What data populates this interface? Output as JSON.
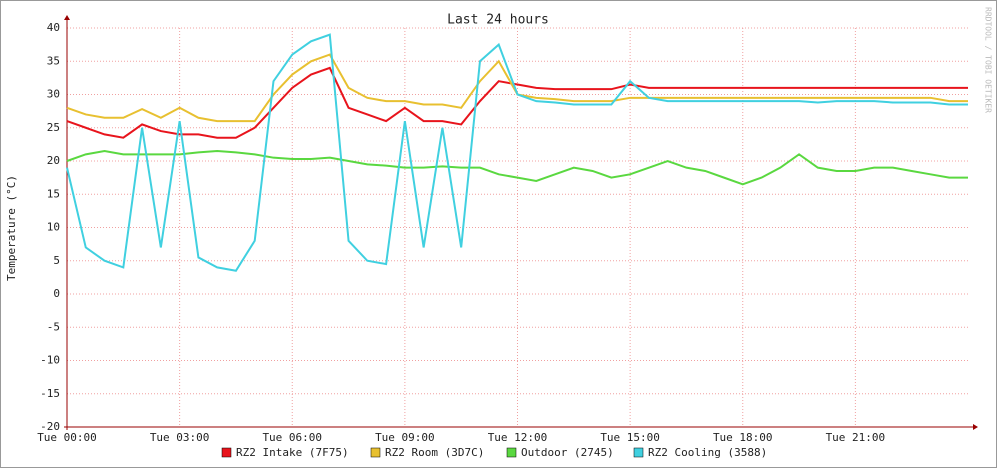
{
  "chart_data": {
    "type": "line",
    "title": "Last 24 hours",
    "y_label": "Temperature (°C)",
    "watermark": "RRDTOOL / TOBI OETIKER",
    "x": [
      0,
      0.5,
      1,
      1.5,
      2,
      2.5,
      3,
      3.5,
      4,
      4.5,
      5,
      5.5,
      6,
      6.5,
      7,
      7.5,
      8,
      8.5,
      9,
      9.5,
      10,
      10.5,
      11,
      11.5,
      12,
      12.5,
      13,
      13.5,
      14,
      14.5,
      15,
      15.5,
      16,
      16.5,
      17,
      17.5,
      18,
      18.5,
      19,
      19.5,
      20,
      20.5,
      21,
      21.5,
      22,
      22.5,
      23,
      23.5,
      24
    ],
    "xlim": [
      0,
      24
    ],
    "xticks": [
      {
        "value": 0,
        "label": "Tue 00:00"
      },
      {
        "value": 3,
        "label": "Tue 03:00"
      },
      {
        "value": 6,
        "label": "Tue 06:00"
      },
      {
        "value": 9,
        "label": "Tue 09:00"
      },
      {
        "value": 12,
        "label": "Tue 12:00"
      },
      {
        "value": 15,
        "label": "Tue 15:00"
      },
      {
        "value": 18,
        "label": "Tue 18:00"
      },
      {
        "value": 21,
        "label": "Tue 21:00"
      }
    ],
    "ylim": [
      -20,
      40
    ],
    "yticks": [
      -20,
      -15,
      -10,
      -5,
      0,
      5,
      10,
      15,
      20,
      25,
      30,
      35,
      40
    ],
    "grid": true,
    "series": [
      {
        "name": "RZ2 Intake (7F75)",
        "color": "#e8141c",
        "values": [
          26,
          25,
          24,
          23.5,
          25.5,
          24.5,
          24,
          24,
          23.5,
          23.5,
          25,
          28,
          31,
          33,
          34,
          28,
          27,
          26,
          28,
          26,
          26,
          25.5,
          29,
          32,
          31.5,
          31,
          30.8,
          30.8,
          30.8,
          30.8,
          31.5,
          31,
          31,
          31,
          31,
          31,
          31,
          31,
          31,
          31,
          31,
          31,
          31,
          31,
          31,
          31,
          31,
          31,
          31
        ]
      },
      {
        "name": "RZ2 Room (3D7C)",
        "color": "#e8c030",
        "values": [
          28,
          27,
          26.5,
          26.5,
          27.8,
          26.5,
          28,
          26.5,
          26,
          26,
          26,
          30,
          33,
          35,
          36,
          31,
          29.5,
          29,
          29,
          28.5,
          28.5,
          28,
          32,
          35,
          30,
          29.5,
          29.3,
          29,
          29,
          29,
          29.5,
          29.5,
          29.5,
          29.5,
          29.5,
          29.5,
          29.5,
          29.5,
          29.5,
          29.5,
          29.5,
          29.5,
          29.5,
          29.5,
          29.5,
          29.5,
          29.5,
          29,
          29
        ]
      },
      {
        "name": "Outdoor (2745)",
        "color": "#5ad840",
        "values": [
          20,
          21,
          21.5,
          21,
          21,
          21,
          21,
          21.3,
          21.5,
          21.3,
          21,
          20.5,
          20.3,
          20.3,
          20.5,
          20,
          19.5,
          19.3,
          19,
          19,
          19.2,
          19,
          19,
          18,
          17.5,
          17,
          18,
          19,
          18.5,
          17.5,
          18,
          19,
          20,
          19,
          18.5,
          17.5,
          16.5,
          17.5,
          19,
          21,
          19,
          18.5,
          18.5,
          19,
          19,
          18.5,
          18,
          17.5,
          17.5
        ]
      },
      {
        "name": "RZ2 Cooling (3588)",
        "color": "#40d0e0",
        "values": [
          19,
          7,
          5,
          4,
          25,
          7,
          26,
          5.5,
          4,
          3.5,
          8,
          32,
          36,
          38,
          39,
          8,
          5,
          4.5,
          26,
          7,
          25,
          7,
          35,
          37.5,
          30,
          29,
          28.8,
          28.5,
          28.5,
          28.5,
          32,
          29.5,
          29,
          29,
          29,
          29,
          29,
          29,
          29,
          29,
          28.8,
          29,
          29,
          29,
          28.8,
          28.8,
          28.8,
          28.5,
          28.5
        ]
      }
    ]
  }
}
